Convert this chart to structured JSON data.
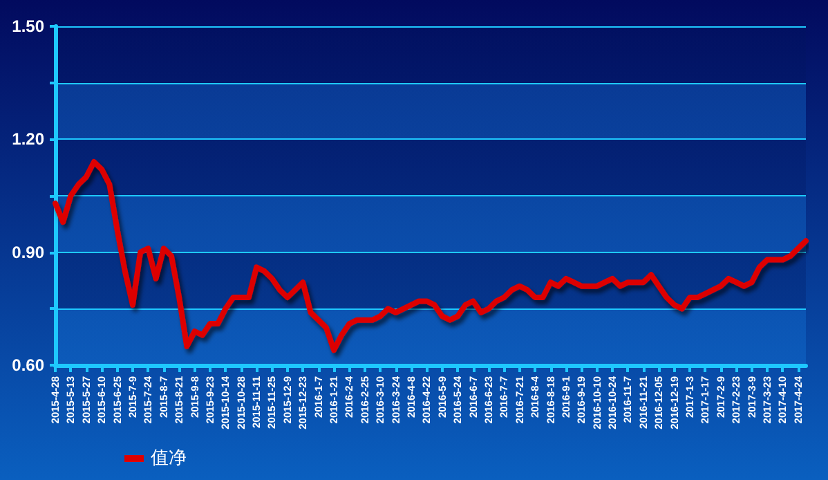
{
  "chart_data": {
    "type": "line",
    "categories": [
      "2015-4-28",
      null,
      "2015-5-13",
      null,
      "2015-5-27",
      null,
      "2015-6-10",
      null,
      "2015-6-25",
      null,
      "2015-7-9",
      null,
      "2015-7-24",
      null,
      "2015-8-7",
      null,
      "2015-8-21",
      null,
      "2015-9-8",
      null,
      "2015-9-23",
      null,
      "2015-10-14",
      null,
      "2015-10-28",
      null,
      "2015-11-11",
      null,
      "2015-11-25",
      null,
      "2015-12-9",
      null,
      "2015-12-23",
      null,
      "2016-1-7",
      null,
      "2016-1-21",
      null,
      "2016-2-4",
      null,
      "2016-2-25",
      null,
      "2016-3-10",
      null,
      "2016-3-24",
      null,
      "2016-4-8",
      null,
      "2016-4-22",
      null,
      "2016-5-9",
      null,
      "2016-5-24",
      null,
      "2016-6-7",
      null,
      "2016-6-23",
      null,
      "2016-7-7",
      null,
      "2016-7-21",
      null,
      "2016-8-4",
      null,
      "2016-8-18",
      null,
      "2016-9-1",
      null,
      "2016-9-19",
      null,
      "2016-10-10",
      null,
      "2016-10-24",
      null,
      "2016-11-7",
      null,
      "2016-11-21",
      null,
      "2016-12-05",
      null,
      "2016-12-19",
      null,
      "2017-1-3",
      null,
      "2017-1-17",
      null,
      "2017-2-9",
      null,
      "2017-2-23",
      null,
      "2017-3-9",
      null,
      "2017-3-23",
      null,
      "2017-4-10",
      null,
      "2017-4-24",
      null
    ],
    "series": [
      {
        "name": "值净",
        "color": "#dd0000",
        "values": [
          1.03,
          0.98,
          1.05,
          1.08,
          1.1,
          1.14,
          1.12,
          1.08,
          0.96,
          0.85,
          0.76,
          0.9,
          0.91,
          0.83,
          0.91,
          0.89,
          0.78,
          0.65,
          0.69,
          0.68,
          0.71,
          0.71,
          0.75,
          0.78,
          0.78,
          0.78,
          0.86,
          0.85,
          0.83,
          0.8,
          0.78,
          0.8,
          0.82,
          0.74,
          0.72,
          0.7,
          0.64,
          0.68,
          0.71,
          0.72,
          0.72,
          0.72,
          0.73,
          0.75,
          0.74,
          0.75,
          0.76,
          0.77,
          0.77,
          0.76,
          0.73,
          0.72,
          0.73,
          0.76,
          0.77,
          0.74,
          0.75,
          0.77,
          0.78,
          0.8,
          0.81,
          0.8,
          0.78,
          0.78,
          0.82,
          0.81,
          0.83,
          0.82,
          0.81,
          0.81,
          0.81,
          0.82,
          0.83,
          0.81,
          0.82,
          0.82,
          0.82,
          0.84,
          0.81,
          0.78,
          0.76,
          0.75,
          0.78,
          0.78,
          0.79,
          0.8,
          0.81,
          0.83,
          0.82,
          0.81,
          0.82,
          0.86,
          0.88,
          0.88,
          0.88,
          0.89,
          0.91,
          0.93
        ]
      }
    ],
    "ylim": [
      0.6,
      1.5
    ],
    "yticks": [
      {
        "value": 0.6,
        "label": "0.60"
      },
      {
        "value": 0.75,
        "label": null
      },
      {
        "value": 0.9,
        "label": "0.90"
      },
      {
        "value": 1.05,
        "label": null
      },
      {
        "value": 1.2,
        "label": "1.20"
      },
      {
        "value": 1.35,
        "label": null
      },
      {
        "value": 1.5,
        "label": "1.50"
      }
    ],
    "grid": "y",
    "legend": "bottom left",
    "marker": "none",
    "line_style": "solid"
  }
}
